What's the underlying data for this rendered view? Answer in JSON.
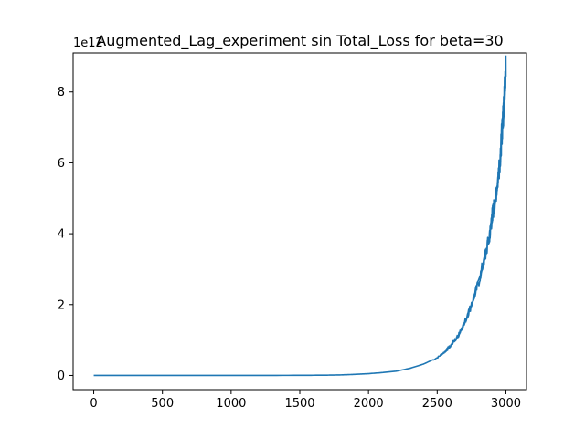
{
  "chart_data": {
    "type": "line",
    "title": "Augmented_Lag_experiment sin Total_Loss for beta=30",
    "xlabel": "",
    "ylabel": "",
    "offset_text": "1e12",
    "xlim": [
      -150,
      3150
    ],
    "ylim": [
      -0.4,
      9.1
    ],
    "x_ticks": [
      0,
      500,
      1000,
      1500,
      2000,
      2500,
      3000
    ],
    "x_tick_labels": [
      "0",
      "500",
      "1000",
      "1500",
      "2000",
      "2500",
      "3000"
    ],
    "y_ticks": [
      0,
      2,
      4,
      6,
      8
    ],
    "y_tick_labels": [
      "0",
      "2",
      "4",
      "6",
      "8"
    ],
    "grid": false,
    "series": [
      {
        "color": "#1f77b4",
        "x": [
          0,
          500,
          1000,
          1500,
          1700,
          1800,
          1900,
          2000,
          2100,
          2200,
          2300,
          2400,
          2500,
          2550,
          2600,
          2650,
          2700,
          2750,
          2800,
          2850,
          2880,
          2900,
          2920,
          2940,
          2960,
          2970,
          2980,
          2990,
          3000
        ],
        "values": [
          0,
          0,
          0,
          0.003,
          0.008,
          0.015,
          0.03,
          0.05,
          0.08,
          0.12,
          0.2,
          0.32,
          0.5,
          0.65,
          0.85,
          1.1,
          1.5,
          2.0,
          2.6,
          3.4,
          3.9,
          4.5,
          4.9,
          5.5,
          6.2,
          6.8,
          7.3,
          8.0,
          8.7
        ]
      }
    ]
  }
}
